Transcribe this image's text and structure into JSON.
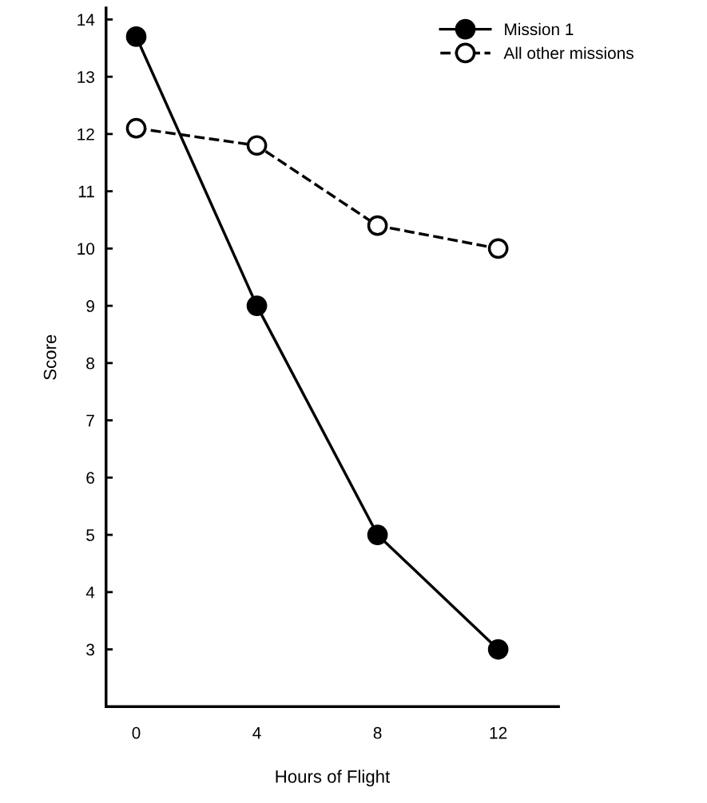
{
  "chart_data": {
    "type": "line",
    "xlabel": "Hours of Flight",
    "ylabel": "Score",
    "x": [
      0,
      4,
      8,
      12
    ],
    "xlim": [
      -1,
      14
    ],
    "xticks": [
      0,
      4,
      8,
      12
    ],
    "ylim": [
      2,
      14.2
    ],
    "yticks": [
      3,
      4,
      5,
      6,
      7,
      8,
      9,
      10,
      11,
      12,
      13,
      14
    ],
    "grid": false,
    "legend": "top right",
    "marker": "circle",
    "series": [
      {
        "name": "Mission 1",
        "color": "#000000",
        "values": [
          13.7,
          9.0,
          5.0,
          3.0
        ],
        "line_style": "solid"
      },
      {
        "name": "All other missions",
        "color": "#000000",
        "values": [
          12.1,
          11.8,
          10.4,
          10.0
        ],
        "line_style": "dashed"
      }
    ]
  }
}
